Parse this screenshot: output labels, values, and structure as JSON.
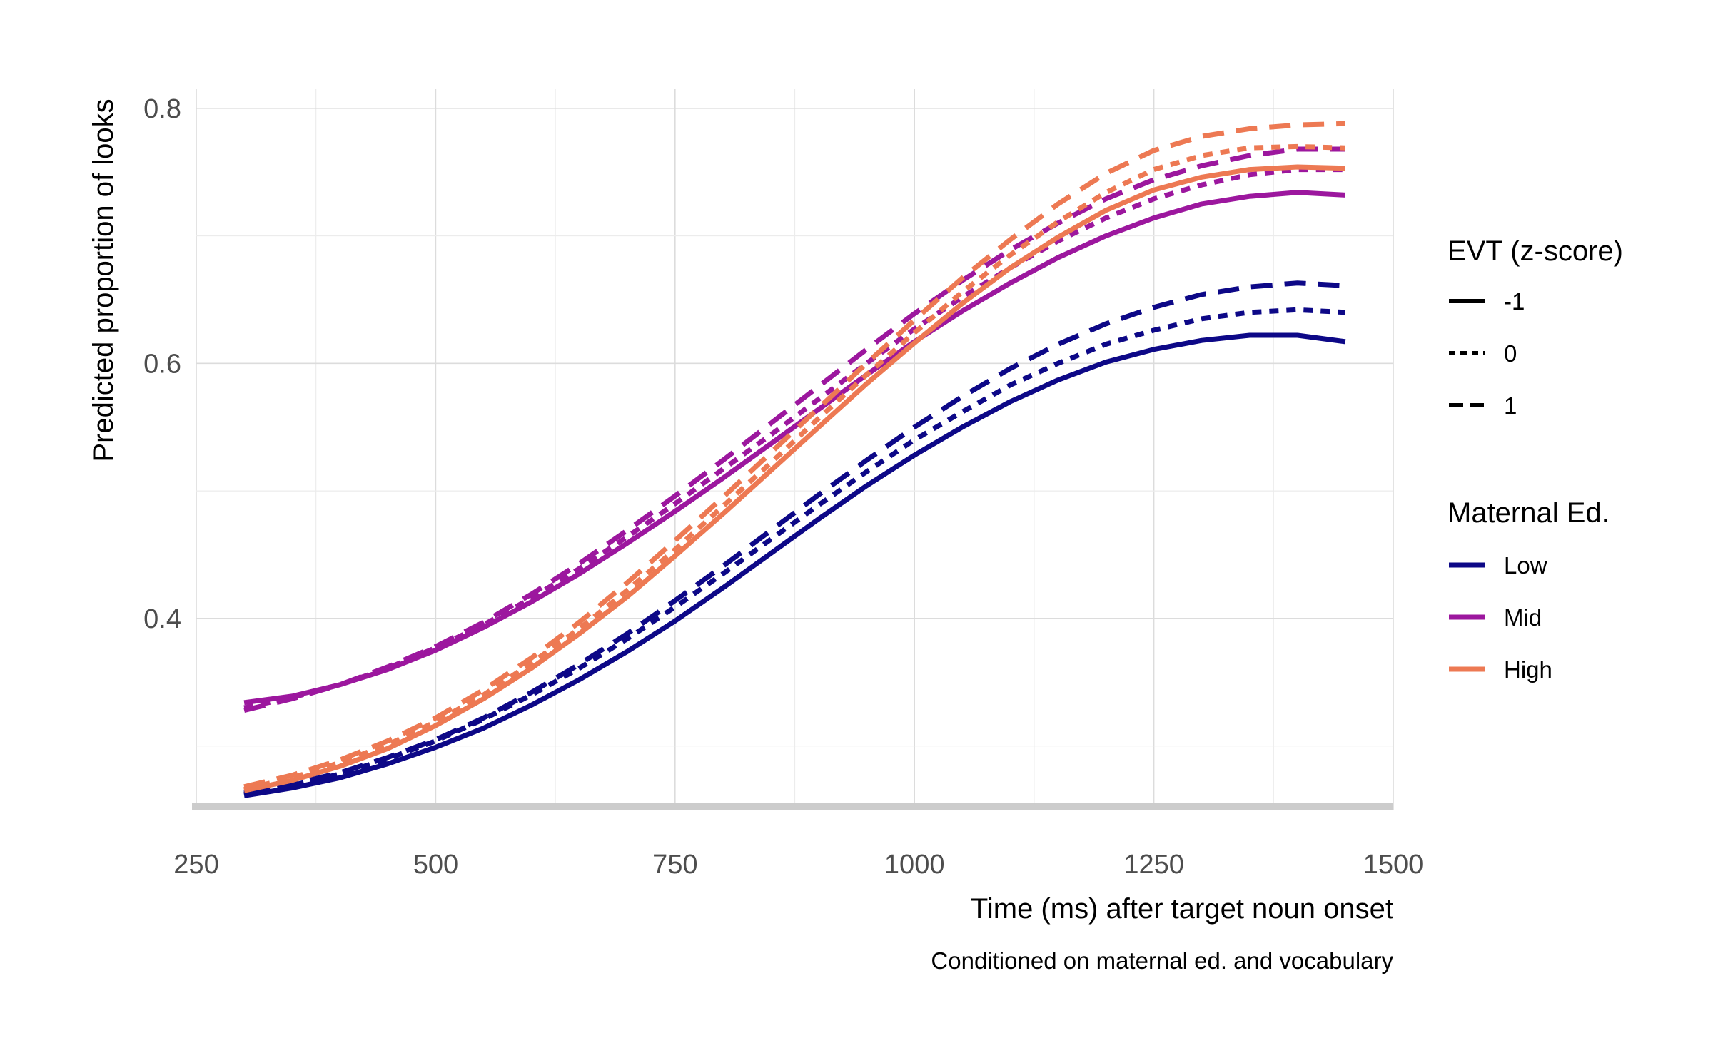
{
  "chart_data": {
    "type": "line",
    "title": "",
    "caption": "Conditioned on maternal ed. and vocabulary",
    "xlabel": "Time (ms) after target noun onset",
    "ylabel": "Predicted proportion of looks",
    "xlim": [
      250,
      1500
    ],
    "ylim": [
      0.25,
      0.815
    ],
    "xticks": [
      250,
      500,
      750,
      1000,
      1250,
      1500
    ],
    "xtick_labels": [
      "250",
      "500",
      "750",
      "1000",
      "1250",
      "1500"
    ],
    "yticks": [
      0.4,
      0.6,
      0.8
    ],
    "ytick_labels": [
      "0.4",
      "0.6",
      "0.8"
    ],
    "grid": true,
    "legend_position": "right",
    "x": [
      300,
      350,
      400,
      450,
      500,
      550,
      600,
      650,
      700,
      750,
      800,
      850,
      900,
      950,
      1000,
      1050,
      1100,
      1150,
      1200,
      1250,
      1300,
      1350,
      1400,
      1450
    ],
    "legend_linetype": {
      "title": "EVT (z-score)",
      "items": [
        {
          "label": "-1",
          "dash": "solid"
        },
        {
          "label": "0",
          "dash": "dotted"
        },
        {
          "label": "1",
          "dash": "dashed"
        }
      ]
    },
    "legend_color": {
      "title": "Maternal Ed.",
      "items": [
        {
          "label": "Low",
          "color": "#0d0887"
        },
        {
          "label": "Mid",
          "color": "#9c179e"
        },
        {
          "label": "High",
          "color": "#ed7953"
        }
      ]
    },
    "series": [
      {
        "maternal_ed": "Low",
        "evt": "-1",
        "color": "#0d0887",
        "dash": "solid",
        "values": [
          0.261,
          0.267,
          0.275,
          0.286,
          0.299,
          0.314,
          0.332,
          0.352,
          0.374,
          0.398,
          0.424,
          0.451,
          0.478,
          0.504,
          0.528,
          0.55,
          0.57,
          0.587,
          0.601,
          0.611,
          0.618,
          0.622,
          0.622,
          0.617
        ]
      },
      {
        "maternal_ed": "Low",
        "evt": "0",
        "color": "#0d0887",
        "dash": "dotted",
        "values": [
          0.262,
          0.269,
          0.278,
          0.29,
          0.304,
          0.321,
          0.34,
          0.361,
          0.384,
          0.409,
          0.435,
          0.462,
          0.489,
          0.515,
          0.54,
          0.562,
          0.583,
          0.6,
          0.615,
          0.626,
          0.635,
          0.64,
          0.642,
          0.64
        ]
      },
      {
        "maternal_ed": "Low",
        "evt": "1",
        "color": "#0d0887",
        "dash": "dashed",
        "values": [
          0.263,
          0.27,
          0.279,
          0.291,
          0.305,
          0.322,
          0.342,
          0.364,
          0.388,
          0.414,
          0.441,
          0.469,
          0.497,
          0.524,
          0.55,
          0.574,
          0.596,
          0.615,
          0.631,
          0.644,
          0.654,
          0.66,
          0.663,
          0.661
        ]
      },
      {
        "maternal_ed": "Mid",
        "evt": "-1",
        "color": "#9c179e",
        "dash": "solid",
        "values": [
          0.334,
          0.339,
          0.348,
          0.36,
          0.375,
          0.393,
          0.413,
          0.435,
          0.459,
          0.484,
          0.51,
          0.537,
          0.564,
          0.591,
          0.617,
          0.641,
          0.663,
          0.683,
          0.7,
          0.714,
          0.725,
          0.731,
          0.734,
          0.732
        ]
      },
      {
        "maternal_ed": "Mid",
        "evt": "0",
        "color": "#9c179e",
        "dash": "dotted",
        "values": [
          0.33,
          0.338,
          0.348,
          0.361,
          0.377,
          0.395,
          0.416,
          0.439,
          0.464,
          0.49,
          0.517,
          0.544,
          0.572,
          0.6,
          0.627,
          0.652,
          0.675,
          0.696,
          0.714,
          0.729,
          0.74,
          0.748,
          0.752,
          0.752
        ]
      },
      {
        "maternal_ed": "Mid",
        "evt": "1",
        "color": "#9c179e",
        "dash": "dashed",
        "values": [
          0.328,
          0.337,
          0.348,
          0.362,
          0.378,
          0.397,
          0.419,
          0.443,
          0.469,
          0.496,
          0.524,
          0.553,
          0.582,
          0.611,
          0.639,
          0.665,
          0.689,
          0.71,
          0.729,
          0.744,
          0.755,
          0.763,
          0.768,
          0.768
        ]
      },
      {
        "maternal_ed": "High",
        "evt": "-1",
        "color": "#ed7953",
        "dash": "solid",
        "values": [
          0.265,
          0.273,
          0.284,
          0.298,
          0.316,
          0.337,
          0.361,
          0.388,
          0.417,
          0.449,
          0.482,
          0.516,
          0.55,
          0.584,
          0.616,
          0.647,
          0.675,
          0.699,
          0.72,
          0.736,
          0.746,
          0.752,
          0.754,
          0.753
        ]
      },
      {
        "maternal_ed": "High",
        "evt": "0",
        "color": "#ed7953",
        "dash": "dotted",
        "values": [
          0.266,
          0.275,
          0.287,
          0.301,
          0.319,
          0.34,
          0.365,
          0.392,
          0.422,
          0.454,
          0.488,
          0.522,
          0.557,
          0.591,
          0.624,
          0.656,
          0.685,
          0.711,
          0.734,
          0.752,
          0.763,
          0.769,
          0.77,
          0.769
        ]
      },
      {
        "maternal_ed": "High",
        "evt": "1",
        "color": "#ed7953",
        "dash": "dashed",
        "values": [
          0.268,
          0.277,
          0.289,
          0.304,
          0.322,
          0.344,
          0.369,
          0.397,
          0.428,
          0.461,
          0.495,
          0.53,
          0.565,
          0.6,
          0.634,
          0.667,
          0.697,
          0.725,
          0.749,
          0.767,
          0.778,
          0.784,
          0.787,
          0.788
        ]
      }
    ]
  }
}
